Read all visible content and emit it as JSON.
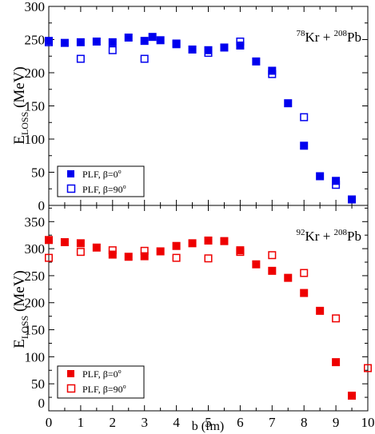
{
  "chart_data": [
    {
      "type": "scatter",
      "reaction": {
        "mass_a": "78",
        "elem_a": "Kr",
        "join": " + ",
        "mass_b": "208",
        "elem_b": "Pb"
      },
      "ylabel": {
        "main": "E",
        "sub": "LOSS",
        "unit": " (MeV)"
      },
      "xlim": [
        0,
        10
      ],
      "ylim": [
        0,
        300
      ],
      "yticks": [
        "0",
        "50",
        "100",
        "150",
        "200",
        "250",
        "300"
      ],
      "color": "#0000ee",
      "legend_position": "bottom-left",
      "series": [
        {
          "name": "PLF, β=0",
          "name_sup": "o",
          "marker": "filled-square",
          "x": [
            0,
            0.5,
            1,
            1.5,
            2,
            2.5,
            3,
            3.25,
            3.5,
            4,
            4.5,
            5,
            5.5,
            6,
            6.5,
            7,
            7.5,
            8,
            8.5,
            9,
            9.5
          ],
          "y": [
            248,
            245,
            246,
            247,
            246,
            253,
            248,
            254,
            249,
            243,
            235,
            234,
            238,
            241,
            217,
            203,
            154,
            90,
            44,
            37,
            9
          ]
        },
        {
          "name": "PLF, β=90",
          "name_sup": "o",
          "marker": "open-square",
          "x": [
            0,
            1,
            2,
            3,
            4,
            5,
            6,
            7,
            8,
            9
          ],
          "y": [
            246,
            221,
            234,
            221,
            244,
            230,
            247,
            198,
            133,
            31
          ]
        }
      ]
    },
    {
      "type": "scatter",
      "reaction": {
        "mass_a": "92",
        "elem_a": "Kr",
        "join": " + ",
        "mass_b": "208",
        "elem_b": "Pb"
      },
      "ylabel": {
        "main": "E",
        "sub": "LOSS",
        "unit": " (MeV)"
      },
      "xlabel": "b (fm)",
      "xlim": [
        0,
        10
      ],
      "ylim": [
        0,
        380
      ],
      "xticks": [
        "0",
        "1",
        "2",
        "3",
        "4",
        "5",
        "6",
        "7",
        "8",
        "9",
        "10"
      ],
      "yticks": [
        "0",
        "50",
        "100",
        "150",
        "200",
        "250",
        "300",
        "350"
      ],
      "color": "#ee0000",
      "legend_position": "bottom-left",
      "series": [
        {
          "name": "PLF, β=0",
          "name_sup": "o",
          "marker": "filled-square",
          "x": [
            0,
            0.5,
            1,
            1.5,
            2,
            2.5,
            3,
            3.5,
            4,
            4.5,
            5,
            5.5,
            6,
            6.5,
            7,
            7.5,
            8,
            8.5,
            9,
            9.5
          ],
          "y": [
            316,
            312,
            310,
            302,
            289,
            285,
            286,
            295,
            305,
            310,
            315,
            314,
            297,
            271,
            259,
            246,
            218,
            185,
            90,
            28
          ]
        },
        {
          "name": "PLF, β=90",
          "name_sup": "o",
          "marker": "open-square",
          "x": [
            0,
            1,
            2,
            3,
            4,
            5,
            6,
            7,
            8,
            9,
            10
          ],
          "y": [
            283,
            294,
            297,
            296,
            283,
            282,
            294,
            288,
            255,
            171,
            79
          ]
        }
      ]
    }
  ]
}
